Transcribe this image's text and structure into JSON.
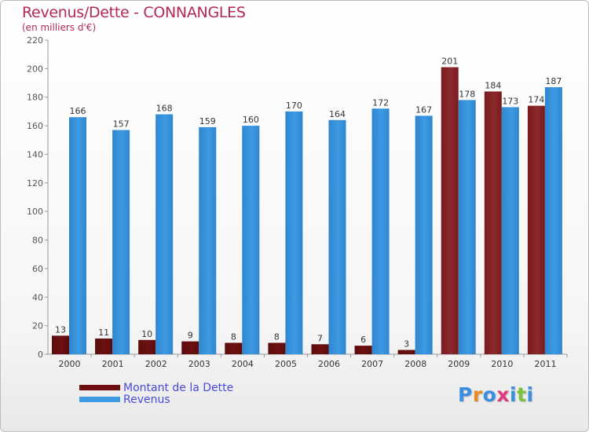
{
  "title": "Revenus/Dette - CONNANGLES",
  "subtitle": "(en milliers d'€)",
  "brand": {
    "name": "Proxiti",
    "colors": [
      "#3b8ee0",
      "#e88a1e",
      "#3b8ee0",
      "#e23a7d",
      "#3b8ee0",
      "#7cc23a",
      "#3b8ee0"
    ]
  },
  "colors": {
    "dette": "#6e1012",
    "revenus": "#3d9ae3",
    "title": "#b2275a",
    "legend_text": "#4a4ad8",
    "grid": "#cccccc"
  },
  "chart_data": {
    "type": "bar",
    "categories": [
      "2000",
      "2001",
      "2002",
      "2003",
      "2004",
      "2005",
      "2006",
      "2007",
      "2008",
      "2009",
      "2010",
      "2011"
    ],
    "series": [
      {
        "name": "Montant de la Dette",
        "values": [
          13,
          11,
          10,
          9,
          8,
          8,
          7,
          6,
          3,
          201,
          184,
          174
        ]
      },
      {
        "name": "Revenus",
        "values": [
          166,
          157,
          168,
          159,
          160,
          170,
          164,
          172,
          167,
          178,
          173,
          187
        ]
      }
    ],
    "ylim": [
      0,
      220
    ],
    "yticks": [
      0,
      20,
      40,
      60,
      80,
      100,
      120,
      140,
      160,
      180,
      200,
      220
    ],
    "grid": false,
    "legend_position": "bottom-left"
  }
}
